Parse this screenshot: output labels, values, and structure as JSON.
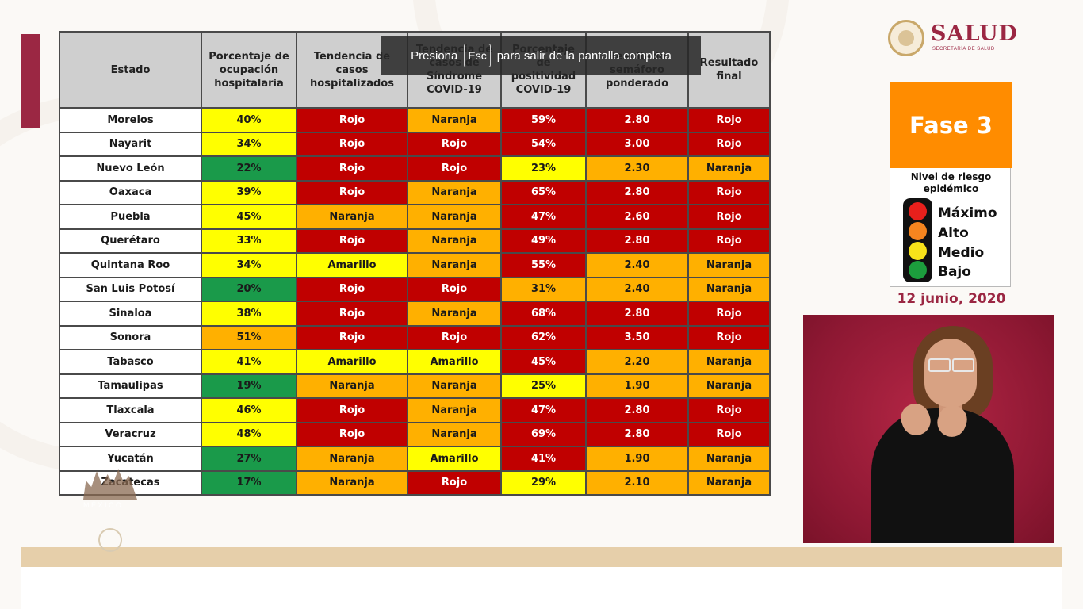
{
  "toast": {
    "prefix": "Presiona",
    "key": "Esc",
    "suffix": "para salir de la pantalla completa"
  },
  "logo": {
    "title": "SALUD",
    "subtitle": "SECRETARÍA DE SALUD"
  },
  "fase": {
    "label": "Fase 3",
    "risk_title_line1": "Nivel de riesgo",
    "risk_title_line2": "epidémico",
    "levels": [
      {
        "label": "Máximo",
        "color": "#e8201c"
      },
      {
        "label": "Alto",
        "color": "#f5851f"
      },
      {
        "label": "Medio",
        "color": "#f8e21a"
      },
      {
        "label": "Bajo",
        "color": "#1c9e3d"
      }
    ],
    "date": "12 junio, 2020"
  },
  "watermark": {
    "text": "M É X I C O"
  },
  "table": {
    "headers": [
      "Estado",
      "Porcentaje de ocupación hospitalaria",
      "Tendencia de casos hospitalizados",
      "Tendencia de casos de Síndrome COVID-19",
      "Porcentaje de positividad COVID-19",
      "Resultado semáforo ponderado",
      "Resultado final"
    ],
    "colors": {
      "red": "#c00000",
      "orange": "#ffb000",
      "yellow": "#ffff00",
      "green": "#1a9a4a"
    },
    "rows": [
      {
        "state": "Morelos",
        "ocup": "40%",
        "ocup_c": "yellow",
        "hosp": "Rojo",
        "hosp_c": "red",
        "sind": "Naranja",
        "sind_c": "orange",
        "pos": "59%",
        "pos_c": "red",
        "pond": "2.80",
        "pond_c": "red",
        "final": "Rojo",
        "final_c": "red"
      },
      {
        "state": "Nayarit",
        "ocup": "34%",
        "ocup_c": "yellow",
        "hosp": "Rojo",
        "hosp_c": "red",
        "sind": "Rojo",
        "sind_c": "red",
        "pos": "54%",
        "pos_c": "red",
        "pond": "3.00",
        "pond_c": "red",
        "final": "Rojo",
        "final_c": "red"
      },
      {
        "state": "Nuevo León",
        "ocup": "22%",
        "ocup_c": "green",
        "hosp": "Rojo",
        "hosp_c": "red",
        "sind": "Rojo",
        "sind_c": "red",
        "pos": "23%",
        "pos_c": "yellow",
        "pond": "2.30",
        "pond_c": "orange",
        "final": "Naranja",
        "final_c": "orange"
      },
      {
        "state": "Oaxaca",
        "ocup": "39%",
        "ocup_c": "yellow",
        "hosp": "Rojo",
        "hosp_c": "red",
        "sind": "Naranja",
        "sind_c": "orange",
        "pos": "65%",
        "pos_c": "red",
        "pond": "2.80",
        "pond_c": "red",
        "final": "Rojo",
        "final_c": "red"
      },
      {
        "state": "Puebla",
        "ocup": "45%",
        "ocup_c": "yellow",
        "hosp": "Naranja",
        "hosp_c": "orange",
        "sind": "Naranja",
        "sind_c": "orange",
        "pos": "47%",
        "pos_c": "red",
        "pond": "2.60",
        "pond_c": "red",
        "final": "Rojo",
        "final_c": "red"
      },
      {
        "state": "Querétaro",
        "ocup": "33%",
        "ocup_c": "yellow",
        "hosp": "Rojo",
        "hosp_c": "red",
        "sind": "Naranja",
        "sind_c": "orange",
        "pos": "49%",
        "pos_c": "red",
        "pond": "2.80",
        "pond_c": "red",
        "final": "Rojo",
        "final_c": "red"
      },
      {
        "state": "Quintana Roo",
        "ocup": "34%",
        "ocup_c": "yellow",
        "hosp": "Amarillo",
        "hosp_c": "yellow",
        "sind": "Naranja",
        "sind_c": "orange",
        "pos": "55%",
        "pos_c": "red",
        "pond": "2.40",
        "pond_c": "orange",
        "final": "Naranja",
        "final_c": "orange"
      },
      {
        "state": "San Luis Potosí",
        "ocup": "20%",
        "ocup_c": "green",
        "hosp": "Rojo",
        "hosp_c": "red",
        "sind": "Rojo",
        "sind_c": "red",
        "pos": "31%",
        "pos_c": "orange",
        "pond": "2.40",
        "pond_c": "orange",
        "final": "Naranja",
        "final_c": "orange"
      },
      {
        "state": "Sinaloa",
        "ocup": "38%",
        "ocup_c": "yellow",
        "hosp": "Rojo",
        "hosp_c": "red",
        "sind": "Naranja",
        "sind_c": "orange",
        "pos": "68%",
        "pos_c": "red",
        "pond": "2.80",
        "pond_c": "red",
        "final": "Rojo",
        "final_c": "red"
      },
      {
        "state": "Sonora",
        "ocup": "51%",
        "ocup_c": "orange",
        "hosp": "Rojo",
        "hosp_c": "red",
        "sind": "Rojo",
        "sind_c": "red",
        "pos": "62%",
        "pos_c": "red",
        "pond": "3.50",
        "pond_c": "red",
        "final": "Rojo",
        "final_c": "red"
      },
      {
        "state": "Tabasco",
        "ocup": "41%",
        "ocup_c": "yellow",
        "hosp": "Amarillo",
        "hosp_c": "yellow",
        "sind": "Amarillo",
        "sind_c": "yellow",
        "pos": "45%",
        "pos_c": "red",
        "pond": "2.20",
        "pond_c": "orange",
        "final": "Naranja",
        "final_c": "orange"
      },
      {
        "state": "Tamaulipas",
        "ocup": "19%",
        "ocup_c": "green",
        "hosp": "Naranja",
        "hosp_c": "orange",
        "sind": "Naranja",
        "sind_c": "orange",
        "pos": "25%",
        "pos_c": "yellow",
        "pond": "1.90",
        "pond_c": "orange",
        "final": "Naranja",
        "final_c": "orange"
      },
      {
        "state": "Tlaxcala",
        "ocup": "46%",
        "ocup_c": "yellow",
        "hosp": "Rojo",
        "hosp_c": "red",
        "sind": "Naranja",
        "sind_c": "orange",
        "pos": "47%",
        "pos_c": "red",
        "pond": "2.80",
        "pond_c": "red",
        "final": "Rojo",
        "final_c": "red"
      },
      {
        "state": "Veracruz",
        "ocup": "48%",
        "ocup_c": "yellow",
        "hosp": "Rojo",
        "hosp_c": "red",
        "sind": "Naranja",
        "sind_c": "orange",
        "pos": "69%",
        "pos_c": "red",
        "pond": "2.80",
        "pond_c": "red",
        "final": "Rojo",
        "final_c": "red"
      },
      {
        "state": "Yucatán",
        "ocup": "27%",
        "ocup_c": "green",
        "hosp": "Naranja",
        "hosp_c": "orange",
        "sind": "Amarillo",
        "sind_c": "yellow",
        "pos": "41%",
        "pos_c": "red",
        "pond": "1.90",
        "pond_c": "orange",
        "final": "Naranja",
        "final_c": "orange"
      },
      {
        "state": "Zacatecas",
        "ocup": "17%",
        "ocup_c": "green",
        "hosp": "Naranja",
        "hosp_c": "orange",
        "sind": "Rojo",
        "sind_c": "red",
        "pos": "29%",
        "pos_c": "yellow",
        "pond": "2.10",
        "pond_c": "orange",
        "final": "Naranja",
        "final_c": "orange"
      }
    ]
  }
}
